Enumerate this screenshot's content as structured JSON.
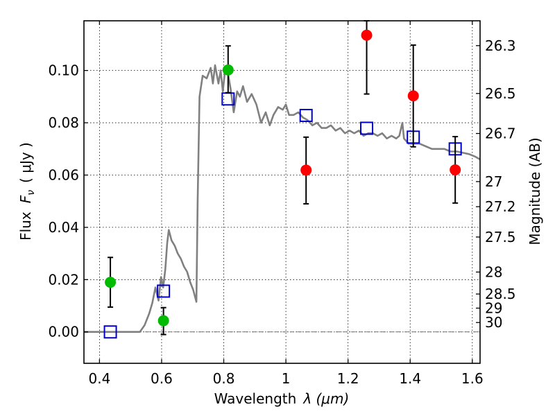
{
  "chart_data": {
    "type": "scatter",
    "xlabel": "Wavelength",
    "xlabel_symbol": "λ (μm)",
    "ylabel": "Flux",
    "ylabel_symbol": "F",
    "ylabel_subscript": "ν",
    "ylabel_units": "( μJy )",
    "y2label": "Magnitude (AB)",
    "xlim": [
      0.35,
      1.625
    ],
    "ylim": [
      -0.012,
      0.119
    ],
    "x_ticks": [
      0.4,
      0.6,
      0.8,
      1.0,
      1.2,
      1.4,
      1.6
    ],
    "x_tick_labels": [
      "0.4",
      "0.6",
      "0.8",
      "1",
      "1.2",
      "1.4",
      "1.6"
    ],
    "y_ticks": [
      0.0,
      0.02,
      0.04,
      0.06,
      0.08,
      0.1
    ],
    "y_tick_labels": [
      "0.00",
      "0.02",
      "0.04",
      "0.06",
      "0.08",
      "0.10"
    ],
    "y2_ticks": [
      {
        "label": "26.3",
        "flux": 0.1095
      },
      {
        "label": "26.5",
        "flux": 0.0912
      },
      {
        "label": "26.7",
        "flux": 0.0759
      },
      {
        "label": "27",
        "flux": 0.0575
      },
      {
        "label": "27.2",
        "flux": 0.0479
      },
      {
        "label": "27.5",
        "flux": 0.0363
      },
      {
        "label": "28",
        "flux": 0.0229
      },
      {
        "label": "28.5",
        "flux": 0.0145
      },
      {
        "label": "29",
        "flux": 0.0091
      },
      {
        "label": "30",
        "flux": 0.0036
      }
    ],
    "grid": true,
    "colors": {
      "model": "#808080",
      "green": "#00bb00",
      "red": "#ff0000",
      "square": "#0000cc",
      "errorbar": "#000000"
    },
    "detections_green": [
      {
        "x": 0.435,
        "y": 0.019,
        "yerr_low": 0.0095,
        "yerr_high": 0.0285
      },
      {
        "x": 0.606,
        "y": 0.0043,
        "yerr_low": -0.001,
        "yerr_high": 0.0093
      },
      {
        "x": 0.814,
        "y": 0.1002,
        "yerr_low": 0.0915,
        "yerr_high": 0.1094
      }
    ],
    "detections_red": [
      {
        "x": 1.065,
        "y": 0.0619,
        "yerr_low": 0.049,
        "yerr_high": 0.0745
      },
      {
        "x": 1.26,
        "y": 0.1135,
        "yerr_low": 0.091,
        "yerr_high": 0.119
      },
      {
        "x": 1.41,
        "y": 0.0903,
        "yerr_low": 0.0708,
        "yerr_high": 0.1097
      },
      {
        "x": 1.545,
        "y": 0.062,
        "yerr_low": 0.0493,
        "yerr_high": 0.0747
      }
    ],
    "model_photometry": [
      {
        "x": 0.435,
        "y": 0.0
      },
      {
        "x": 0.606,
        "y": 0.0156
      },
      {
        "x": 0.814,
        "y": 0.0891
      },
      {
        "x": 1.065,
        "y": 0.0828
      },
      {
        "x": 1.26,
        "y": 0.0779
      },
      {
        "x": 1.41,
        "y": 0.0745
      },
      {
        "x": 1.545,
        "y": 0.07
      }
    ],
    "model_sed": [
      [
        0.35,
        0.0
      ],
      [
        0.52,
        0.0
      ],
      [
        0.53,
        0.0
      ],
      [
        0.545,
        0.0025
      ],
      [
        0.56,
        0.007
      ],
      [
        0.57,
        0.011
      ],
      [
        0.58,
        0.017
      ],
      [
        0.59,
        0.012
      ],
      [
        0.598,
        0.021
      ],
      [
        0.605,
        0.017
      ],
      [
        0.612,
        0.024
      ],
      [
        0.618,
        0.034
      ],
      [
        0.623,
        0.039
      ],
      [
        0.632,
        0.035
      ],
      [
        0.642,
        0.033
      ],
      [
        0.652,
        0.03
      ],
      [
        0.662,
        0.028
      ],
      [
        0.672,
        0.025
      ],
      [
        0.682,
        0.023
      ],
      [
        0.692,
        0.019
      ],
      [
        0.702,
        0.016
      ],
      [
        0.712,
        0.0115
      ],
      [
        0.716,
        0.05
      ],
      [
        0.722,
        0.09
      ],
      [
        0.732,
        0.098
      ],
      [
        0.745,
        0.097
      ],
      [
        0.758,
        0.101
      ],
      [
        0.765,
        0.095
      ],
      [
        0.772,
        0.102
      ],
      [
        0.783,
        0.095
      ],
      [
        0.79,
        0.1
      ],
      [
        0.797,
        0.092
      ],
      [
        0.805,
        0.101
      ],
      [
        0.815,
        0.098
      ],
      [
        0.822,
        0.093
      ],
      [
        0.832,
        0.084
      ],
      [
        0.843,
        0.092
      ],
      [
        0.852,
        0.09
      ],
      [
        0.862,
        0.094
      ],
      [
        0.875,
        0.088
      ],
      [
        0.89,
        0.091
      ],
      [
        0.905,
        0.087
      ],
      [
        0.92,
        0.08
      ],
      [
        0.935,
        0.084
      ],
      [
        0.948,
        0.079
      ],
      [
        0.96,
        0.083
      ],
      [
        0.975,
        0.086
      ],
      [
        0.99,
        0.085
      ],
      [
        1.0,
        0.087
      ],
      [
        1.01,
        0.083
      ],
      [
        1.025,
        0.083
      ],
      [
        1.04,
        0.084
      ],
      [
        1.055,
        0.082
      ],
      [
        1.07,
        0.081
      ],
      [
        1.085,
        0.079
      ],
      [
        1.1,
        0.08
      ],
      [
        1.115,
        0.078
      ],
      [
        1.13,
        0.078
      ],
      [
        1.145,
        0.079
      ],
      [
        1.16,
        0.077
      ],
      [
        1.175,
        0.078
      ],
      [
        1.19,
        0.076
      ],
      [
        1.205,
        0.077
      ],
      [
        1.22,
        0.076
      ],
      [
        1.235,
        0.077
      ],
      [
        1.25,
        0.075
      ],
      [
        1.265,
        0.076
      ],
      [
        1.28,
        0.076
      ],
      [
        1.295,
        0.075
      ],
      [
        1.31,
        0.076
      ],
      [
        1.325,
        0.074
      ],
      [
        1.34,
        0.075
      ],
      [
        1.355,
        0.074
      ],
      [
        1.365,
        0.075
      ],
      [
        1.375,
        0.08
      ],
      [
        1.38,
        0.074
      ],
      [
        1.395,
        0.072
      ],
      [
        1.41,
        0.072
      ],
      [
        1.43,
        0.072
      ],
      [
        1.45,
        0.071
      ],
      [
        1.47,
        0.07
      ],
      [
        1.49,
        0.07
      ],
      [
        1.51,
        0.07
      ],
      [
        1.53,
        0.069
      ],
      [
        1.55,
        0.069
      ],
      [
        1.57,
        0.0685
      ],
      [
        1.59,
        0.068
      ],
      [
        1.61,
        0.067
      ],
      [
        1.625,
        0.066
      ]
    ]
  }
}
